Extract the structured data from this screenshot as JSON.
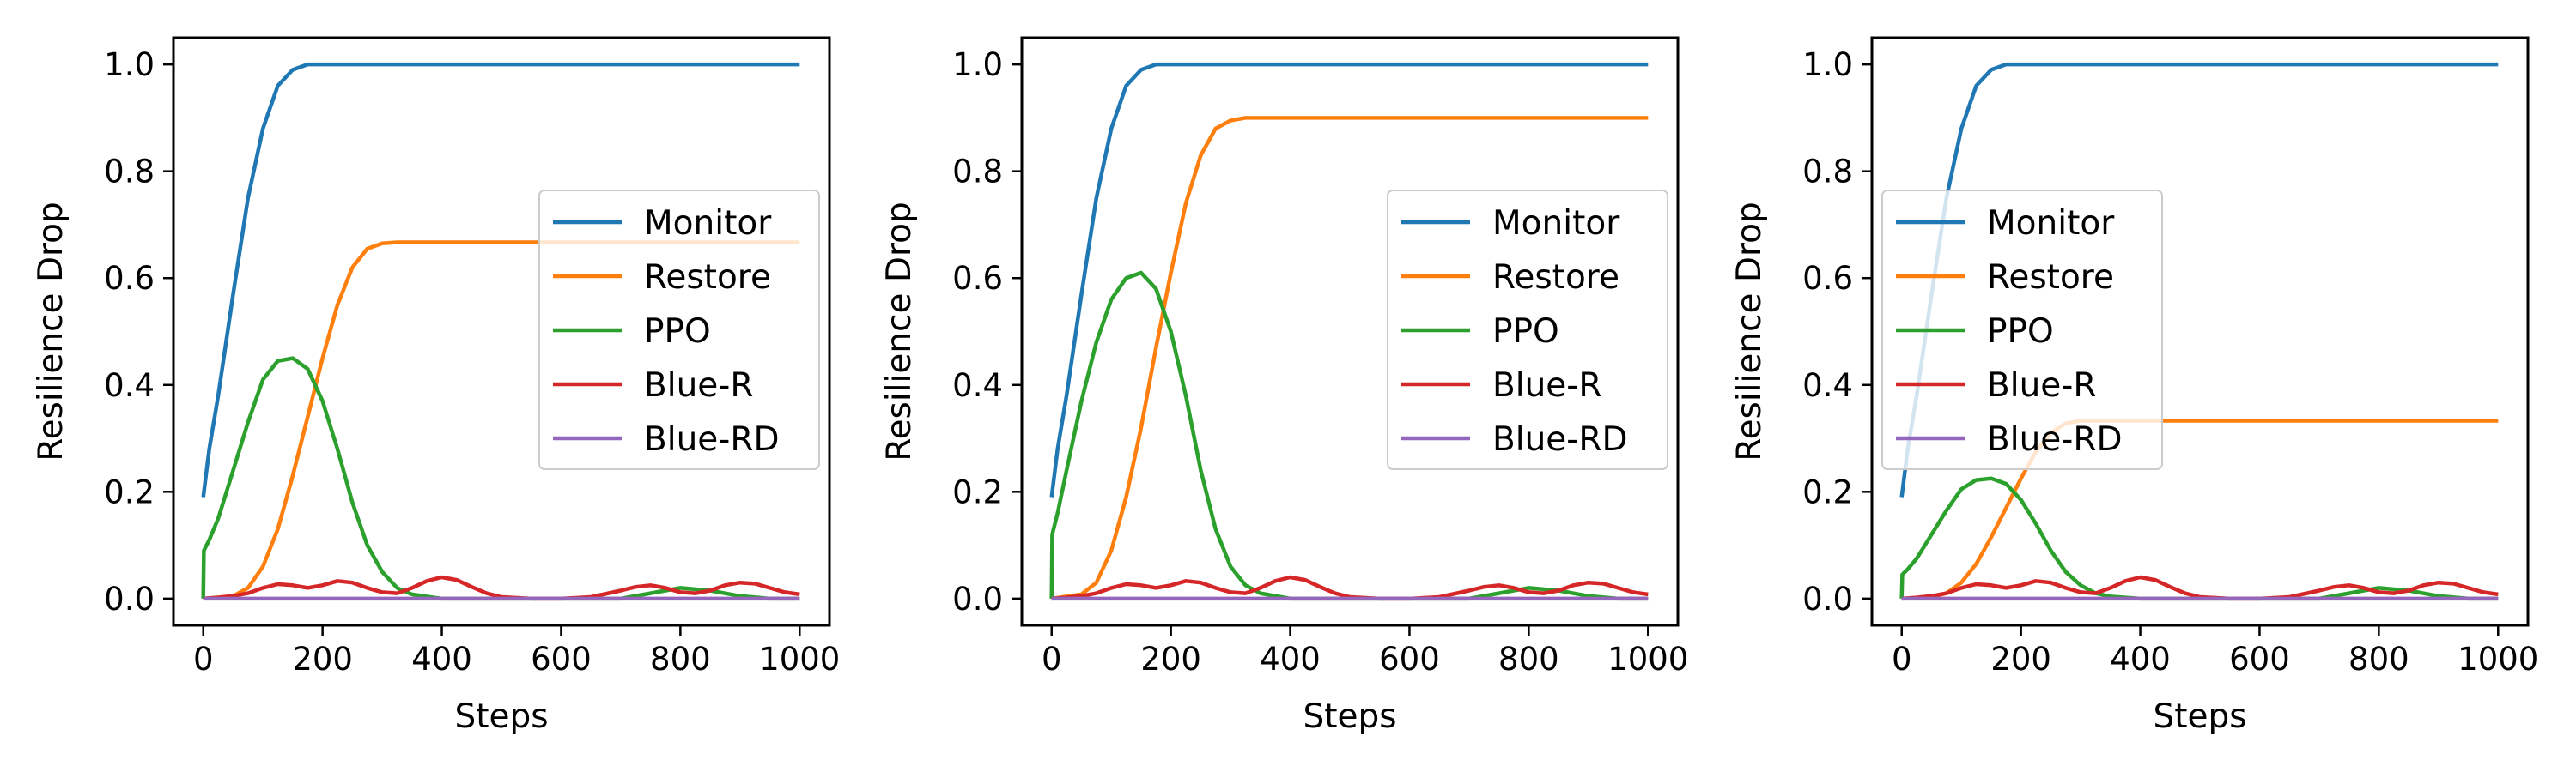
{
  "colors": {
    "monitor": "#1f77b4",
    "restore": "#ff7f0e",
    "ppo": "#2ca02c",
    "blue_r": "#d62728",
    "blue_rd": "#9467bd"
  },
  "chart_data": [
    {
      "type": "line",
      "title": "",
      "xlabel": "Steps",
      "ylabel": "Resilience Drop",
      "xlim": [
        -50,
        1050
      ],
      "ylim": [
        -0.05,
        1.05
      ],
      "xticks": [
        0,
        200,
        400,
        600,
        800,
        1000
      ],
      "yticks": [
        0.0,
        0.2,
        0.4,
        0.6,
        0.8,
        1.0
      ],
      "xtick_labels": [
        "0",
        "200",
        "400",
        "600",
        "800",
        "1000"
      ],
      "ytick_labels": [
        "0.0",
        "0.2",
        "0.4",
        "0.6",
        "0.8",
        "1.0"
      ],
      "grid": false,
      "legend": {
        "position": "center-right"
      },
      "series": [
        {
          "name": "Monitor",
          "color_key": "monitor",
          "x": [
            0,
            10,
            25,
            50,
            75,
            100,
            125,
            150,
            175,
            200,
            250,
            300,
            400,
            500,
            600,
            700,
            800,
            900,
            1000
          ],
          "y": [
            0.19,
            0.28,
            0.38,
            0.57,
            0.75,
            0.88,
            0.96,
            0.99,
            1.0,
            1.0,
            1.0,
            1.0,
            1.0,
            1.0,
            1.0,
            1.0,
            1.0,
            1.0,
            1.0
          ]
        },
        {
          "name": "Restore",
          "color_key": "restore",
          "x": [
            0,
            50,
            75,
            100,
            125,
            150,
            175,
            200,
            225,
            250,
            275,
            300,
            325,
            350,
            400,
            500,
            600,
            700,
            800,
            900,
            1000
          ],
          "y": [
            0.0,
            0.005,
            0.02,
            0.06,
            0.13,
            0.23,
            0.34,
            0.45,
            0.55,
            0.62,
            0.655,
            0.665,
            0.667,
            0.667,
            0.667,
            0.667,
            0.667,
            0.667,
            0.667,
            0.667,
            0.667
          ]
        },
        {
          "name": "PPO",
          "color_key": "ppo",
          "x": [
            0,
            1,
            10,
            25,
            50,
            75,
            100,
            125,
            150,
            175,
            200,
            225,
            250,
            275,
            300,
            325,
            350,
            400,
            500,
            600,
            700,
            750,
            800,
            850,
            900,
            950,
            1000
          ],
          "y": [
            0.0,
            0.09,
            0.11,
            0.15,
            0.24,
            0.33,
            0.41,
            0.445,
            0.45,
            0.43,
            0.37,
            0.28,
            0.18,
            0.1,
            0.05,
            0.02,
            0.008,
            0.0,
            0.0,
            0.0,
            0.0,
            0.01,
            0.02,
            0.015,
            0.005,
            0.0,
            0.0
          ]
        },
        {
          "name": "Blue-R",
          "color_key": "blue_r",
          "x": [
            0,
            25,
            50,
            75,
            100,
            125,
            150,
            175,
            200,
            225,
            250,
            275,
            300,
            325,
            350,
            375,
            400,
            425,
            450,
            475,
            500,
            550,
            600,
            650,
            700,
            725,
            750,
            775,
            800,
            825,
            850,
            875,
            900,
            925,
            950,
            975,
            1000
          ],
          "y": [
            0.0,
            0.002,
            0.005,
            0.01,
            0.02,
            0.027,
            0.025,
            0.02,
            0.025,
            0.033,
            0.03,
            0.02,
            0.012,
            0.01,
            0.02,
            0.033,
            0.04,
            0.035,
            0.022,
            0.01,
            0.003,
            0.0,
            0.0,
            0.003,
            0.015,
            0.022,
            0.025,
            0.02,
            0.012,
            0.01,
            0.015,
            0.025,
            0.03,
            0.028,
            0.02,
            0.012,
            0.008
          ]
        },
        {
          "name": "Blue-RD",
          "color_key": "blue_rd",
          "x": [
            0,
            1000
          ],
          "y": [
            0.0,
            0.0
          ]
        }
      ]
    },
    {
      "type": "line",
      "title": "",
      "xlabel": "Steps",
      "ylabel": "Resilience Drop",
      "xlim": [
        -50,
        1050
      ],
      "ylim": [
        -0.05,
        1.05
      ],
      "xticks": [
        0,
        200,
        400,
        600,
        800,
        1000
      ],
      "yticks": [
        0.0,
        0.2,
        0.4,
        0.6,
        0.8,
        1.0
      ],
      "xtick_labels": [
        "0",
        "200",
        "400",
        "600",
        "800",
        "1000"
      ],
      "ytick_labels": [
        "0.0",
        "0.2",
        "0.4",
        "0.6",
        "0.8",
        "1.0"
      ],
      "grid": false,
      "legend": {
        "position": "center-right"
      },
      "series": [
        {
          "name": "Monitor",
          "color_key": "monitor",
          "x": [
            0,
            10,
            25,
            50,
            75,
            100,
            125,
            150,
            175,
            200,
            250,
            300,
            400,
            500,
            600,
            700,
            800,
            900,
            1000
          ],
          "y": [
            0.19,
            0.28,
            0.38,
            0.57,
            0.75,
            0.88,
            0.96,
            0.99,
            1.0,
            1.0,
            1.0,
            1.0,
            1.0,
            1.0,
            1.0,
            1.0,
            1.0,
            1.0,
            1.0
          ]
        },
        {
          "name": "Restore",
          "color_key": "restore",
          "x": [
            0,
            50,
            75,
            100,
            125,
            150,
            175,
            200,
            225,
            250,
            275,
            300,
            325,
            350,
            400,
            500,
            600,
            700,
            800,
            900,
            1000
          ],
          "y": [
            0.0,
            0.008,
            0.03,
            0.09,
            0.19,
            0.32,
            0.47,
            0.61,
            0.74,
            0.83,
            0.88,
            0.895,
            0.9,
            0.9,
            0.9,
            0.9,
            0.9,
            0.9,
            0.9,
            0.9,
            0.9
          ]
        },
        {
          "name": "PPO",
          "color_key": "ppo",
          "x": [
            0,
            1,
            10,
            25,
            50,
            75,
            100,
            125,
            150,
            175,
            200,
            225,
            250,
            275,
            300,
            325,
            350,
            400,
            500,
            600,
            700,
            750,
            800,
            850,
            900,
            950,
            1000
          ],
          "y": [
            0.0,
            0.12,
            0.16,
            0.24,
            0.37,
            0.48,
            0.56,
            0.6,
            0.61,
            0.58,
            0.5,
            0.38,
            0.24,
            0.13,
            0.06,
            0.025,
            0.01,
            0.0,
            0.0,
            0.0,
            0.0,
            0.01,
            0.02,
            0.015,
            0.005,
            0.0,
            0.0
          ]
        },
        {
          "name": "Blue-R",
          "color_key": "blue_r",
          "x": [
            0,
            25,
            50,
            75,
            100,
            125,
            150,
            175,
            200,
            225,
            250,
            275,
            300,
            325,
            350,
            375,
            400,
            425,
            450,
            475,
            500,
            550,
            600,
            650,
            700,
            725,
            750,
            775,
            800,
            825,
            850,
            875,
            900,
            925,
            950,
            975,
            1000
          ],
          "y": [
            0.0,
            0.002,
            0.005,
            0.01,
            0.02,
            0.027,
            0.025,
            0.02,
            0.025,
            0.033,
            0.03,
            0.02,
            0.012,
            0.01,
            0.02,
            0.033,
            0.04,
            0.035,
            0.022,
            0.01,
            0.003,
            0.0,
            0.0,
            0.003,
            0.015,
            0.022,
            0.025,
            0.02,
            0.012,
            0.01,
            0.015,
            0.025,
            0.03,
            0.028,
            0.02,
            0.012,
            0.008
          ]
        },
        {
          "name": "Blue-RD",
          "color_key": "blue_rd",
          "x": [
            0,
            1000
          ],
          "y": [
            0.0,
            0.0
          ]
        }
      ]
    },
    {
      "type": "line",
      "title": "",
      "xlabel": "Steps",
      "ylabel": "Resilience Drop",
      "xlim": [
        -50,
        1050
      ],
      "ylim": [
        -0.05,
        1.05
      ],
      "xticks": [
        0,
        200,
        400,
        600,
        800,
        1000
      ],
      "yticks": [
        0.0,
        0.2,
        0.4,
        0.6,
        0.8,
        1.0
      ],
      "xtick_labels": [
        "0",
        "200",
        "400",
        "600",
        "800",
        "1000"
      ],
      "ytick_labels": [
        "0.0",
        "0.2",
        "0.4",
        "0.6",
        "0.8",
        "1.0"
      ],
      "grid": false,
      "legend": {
        "position": "upper-left"
      },
      "series": [
        {
          "name": "Monitor",
          "color_key": "monitor",
          "x": [
            0,
            10,
            25,
            50,
            75,
            100,
            125,
            150,
            175,
            200,
            250,
            300,
            400,
            500,
            600,
            700,
            800,
            900,
            1000
          ],
          "y": [
            0.19,
            0.28,
            0.38,
            0.57,
            0.75,
            0.88,
            0.96,
            0.99,
            1.0,
            1.0,
            1.0,
            1.0,
            1.0,
            1.0,
            1.0,
            1.0,
            1.0,
            1.0,
            1.0
          ]
        },
        {
          "name": "Restore",
          "color_key": "restore",
          "x": [
            0,
            50,
            75,
            100,
            125,
            150,
            175,
            200,
            225,
            250,
            275,
            300,
            325,
            350,
            400,
            500,
            600,
            700,
            800,
            900,
            1000
          ],
          "y": [
            0.0,
            0.003,
            0.01,
            0.03,
            0.065,
            0.115,
            0.17,
            0.225,
            0.275,
            0.31,
            0.328,
            0.333,
            0.333,
            0.333,
            0.333,
            0.333,
            0.333,
            0.333,
            0.333,
            0.333,
            0.333
          ]
        },
        {
          "name": "PPO",
          "color_key": "ppo",
          "x": [
            0,
            1,
            10,
            25,
            50,
            75,
            100,
            125,
            150,
            175,
            200,
            225,
            250,
            275,
            300,
            325,
            350,
            400,
            500,
            600,
            700,
            750,
            800,
            850,
            900,
            950,
            1000
          ],
          "y": [
            0.0,
            0.045,
            0.055,
            0.075,
            0.12,
            0.165,
            0.205,
            0.222,
            0.225,
            0.215,
            0.185,
            0.14,
            0.09,
            0.05,
            0.025,
            0.01,
            0.004,
            0.0,
            0.0,
            0.0,
            0.0,
            0.01,
            0.02,
            0.015,
            0.005,
            0.0,
            0.0
          ]
        },
        {
          "name": "Blue-R",
          "color_key": "blue_r",
          "x": [
            0,
            25,
            50,
            75,
            100,
            125,
            150,
            175,
            200,
            225,
            250,
            275,
            300,
            325,
            350,
            375,
            400,
            425,
            450,
            475,
            500,
            550,
            600,
            650,
            700,
            725,
            750,
            775,
            800,
            825,
            850,
            875,
            900,
            925,
            950,
            975,
            1000
          ],
          "y": [
            0.0,
            0.002,
            0.005,
            0.01,
            0.02,
            0.027,
            0.025,
            0.02,
            0.025,
            0.033,
            0.03,
            0.02,
            0.012,
            0.01,
            0.02,
            0.033,
            0.04,
            0.035,
            0.022,
            0.01,
            0.003,
            0.0,
            0.0,
            0.003,
            0.015,
            0.022,
            0.025,
            0.02,
            0.012,
            0.01,
            0.015,
            0.025,
            0.03,
            0.028,
            0.02,
            0.012,
            0.008
          ]
        },
        {
          "name": "Blue-RD",
          "color_key": "blue_rd",
          "x": [
            0,
            1000
          ],
          "y": [
            0.0,
            0.0
          ]
        }
      ]
    }
  ]
}
